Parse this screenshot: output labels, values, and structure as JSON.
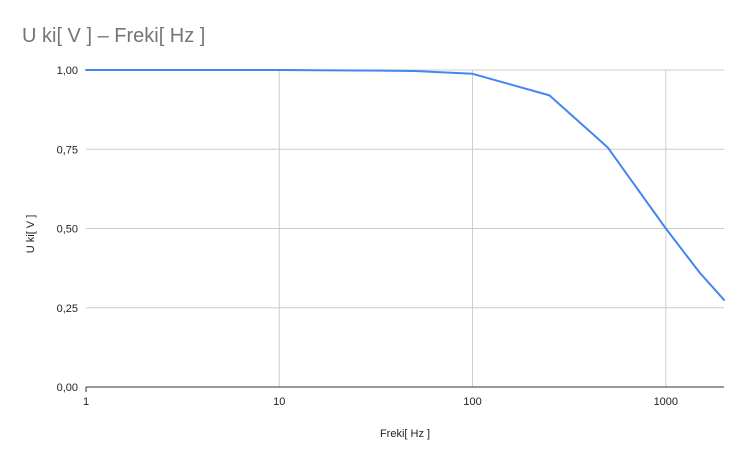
{
  "chart_data": {
    "type": "line",
    "title": "U ki[ V ] – Freki[ Hz ]",
    "xlabel": "Freki[ Hz ]",
    "ylabel": "U ki[ V ]",
    "x_scale": "log",
    "xlim": [
      1,
      2000
    ],
    "ylim": [
      0,
      1
    ],
    "x_ticks": [
      1,
      10,
      100,
      1000
    ],
    "x_tick_labels": [
      "1",
      "10",
      "100",
      "1000"
    ],
    "y_ticks": [
      0,
      0.25,
      0.5,
      0.75,
      1
    ],
    "y_tick_labels": [
      "0,00",
      "0,25",
      "0,50",
      "0,75",
      "1,00"
    ],
    "grid": true,
    "series": [
      {
        "color": "#4285f4",
        "x": [
          1,
          10,
          20,
          50,
          100,
          250,
          500,
          1000,
          1500,
          2000
        ],
        "y": [
          1.0,
          1.0,
          0.999,
          0.997,
          0.988,
          0.92,
          0.756,
          0.5,
          0.36,
          0.275
        ]
      }
    ]
  }
}
